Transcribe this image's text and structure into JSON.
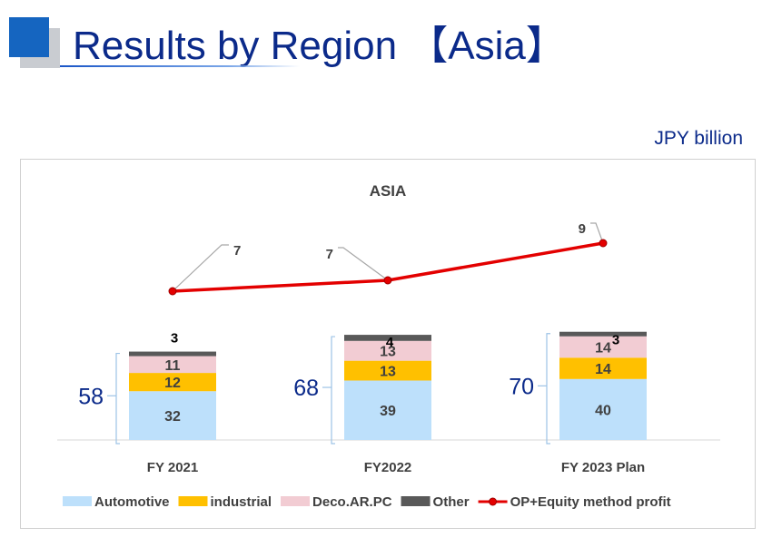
{
  "page": {
    "title": "Results by Region 【Asia】",
    "unit": "JPY  billion"
  },
  "chart_data": {
    "type": "bar",
    "stacked": true,
    "title": "ASIA",
    "categories": [
      "FY 2021",
      "FY2022",
      "FY 2023 Plan"
    ],
    "totals": [
      58,
      68,
      70
    ],
    "series": [
      {
        "name": "Automotive",
        "color": "#bde0fb",
        "values": [
          32,
          39,
          40
        ]
      },
      {
        "name": "industrial",
        "color": "#ffc000",
        "values": [
          12,
          13,
          14
        ]
      },
      {
        "name": "Deco.AR.PC",
        "color": "#f2ccd3",
        "values": [
          11,
          13,
          14
        ]
      },
      {
        "name": "Other",
        "color": "#595959",
        "values": [
          3,
          4,
          3
        ]
      }
    ],
    "line_series": {
      "name": "OP+Equity method profit",
      "color": "#e30000",
      "values": [
        7,
        7,
        9
      ]
    },
    "legend_position": "bottom",
    "grid": false
  }
}
